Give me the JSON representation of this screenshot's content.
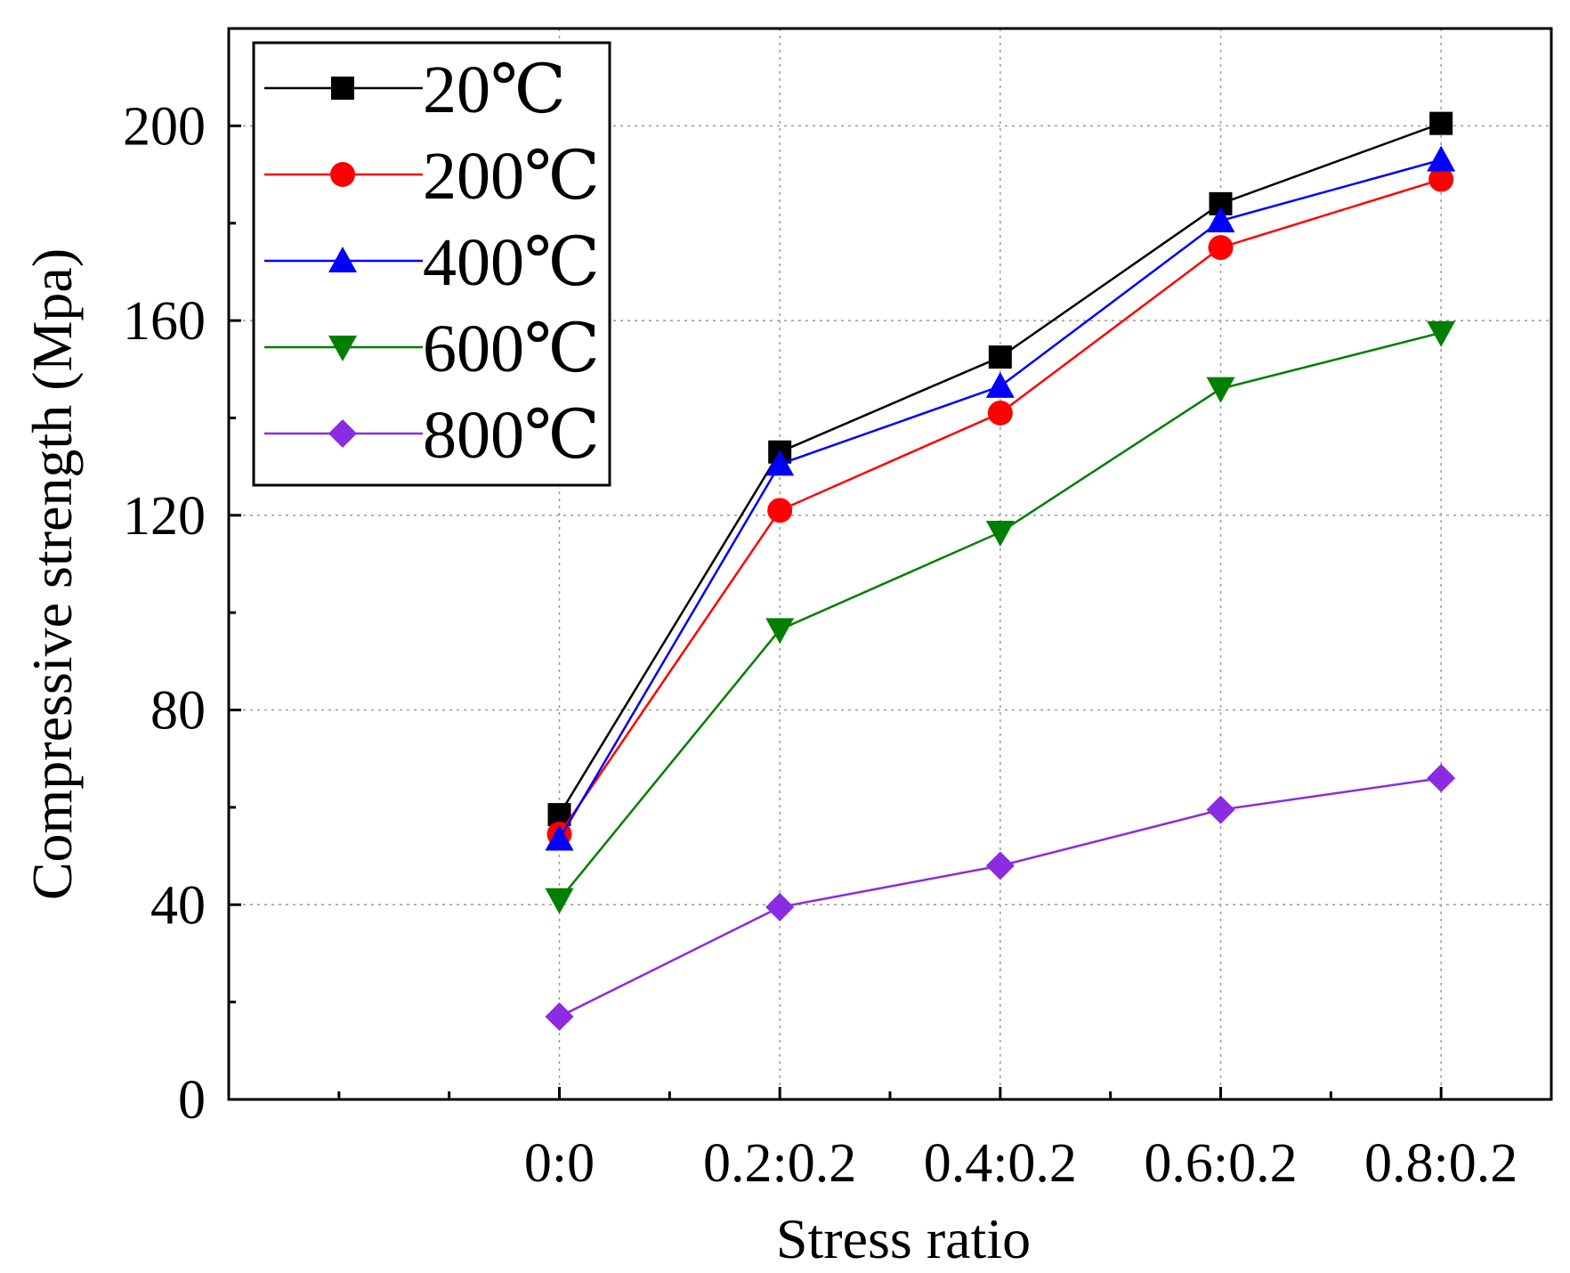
{
  "chart_data": {
    "type": "line",
    "title": "",
    "xlabel": "Stress ratio",
    "ylabel": "Compressive strength (Mpa)",
    "categories": [
      "0:0",
      "0.2:0.2",
      "0.4:0.2",
      "0.6:0.2",
      "0.8:0.2"
    ],
    "x_range": [
      -1.5,
      4.5
    ],
    "ylim": [
      0,
      220
    ],
    "y_ticks": [
      0,
      40,
      80,
      120,
      160,
      200
    ],
    "grid": true,
    "legend_position": "top-left",
    "series": [
      {
        "name": "20℃",
        "color": "#000000",
        "marker": "square",
        "values": [
          58.5,
          133.0,
          152.5,
          184.0,
          200.5
        ]
      },
      {
        "name": "200℃",
        "color": "#ff0000",
        "marker": "circle",
        "values": [
          54.5,
          121.0,
          141.0,
          175.0,
          189.0
        ]
      },
      {
        "name": "400℃",
        "color": "#0000ff",
        "marker": "triangle-up",
        "values": [
          53.5,
          130.5,
          146.5,
          180.5,
          193.0
        ]
      },
      {
        "name": "600℃",
        "color": "#007f00",
        "marker": "triangle-down",
        "values": [
          41.0,
          96.5,
          116.5,
          146.0,
          157.5
        ]
      },
      {
        "name": "800℃",
        "color": "#8b2be2",
        "marker": "diamond",
        "values": [
          17.0,
          39.5,
          48.0,
          59.5,
          66.0
        ]
      }
    ]
  }
}
